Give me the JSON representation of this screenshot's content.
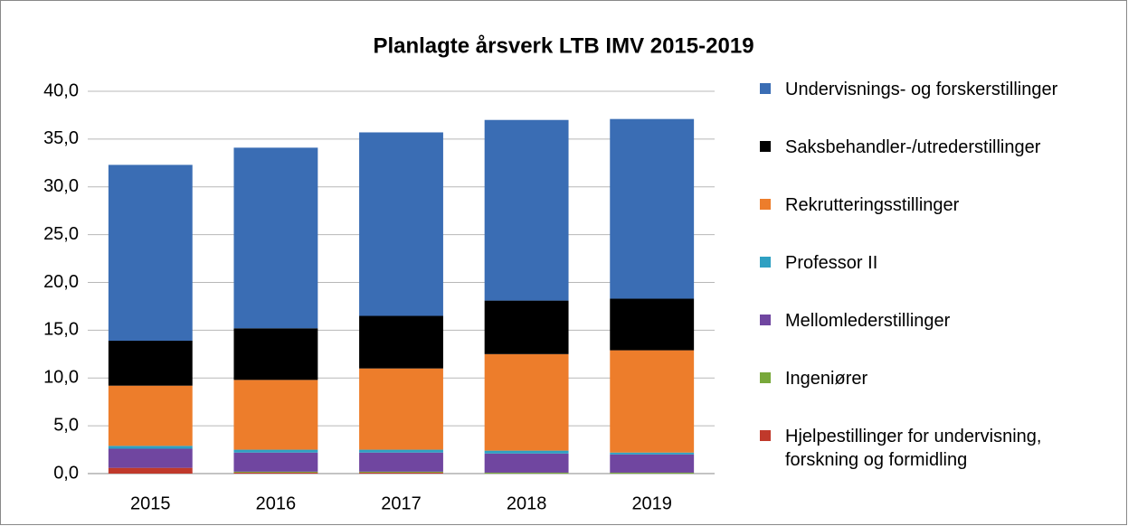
{
  "chart_data": {
    "type": "stacked-bar",
    "title": "Planlagte årsverk LTB IMV 2015-2019",
    "categories": [
      "2015",
      "2016",
      "2017",
      "2018",
      "2019"
    ],
    "series": [
      {
        "name": "Hjelpestillinger for undervisning, forskning og formidling",
        "color": "#c0392b",
        "values": [
          0.6,
          0.1,
          0.1,
          0.0,
          0.0
        ]
      },
      {
        "name": "Ingeniører",
        "color": "#78a83a",
        "values": [
          0.0,
          0.1,
          0.1,
          0.1,
          0.1
        ]
      },
      {
        "name": "Mellomlederstillinger",
        "color": "#7046a0",
        "values": [
          2.0,
          2.0,
          2.0,
          2.0,
          1.9
        ]
      },
      {
        "name": "Professor II",
        "color": "#2fa0c2",
        "values": [
          0.3,
          0.3,
          0.3,
          0.3,
          0.2
        ]
      },
      {
        "name": "Rekrutteringsstillinger",
        "color": "#ed7d2b",
        "values": [
          6.3,
          7.3,
          8.5,
          10.1,
          10.7
        ]
      },
      {
        "name": "Saksbehandler-/utrederstillinger",
        "color": "#000000",
        "values": [
          4.7,
          5.4,
          5.5,
          5.6,
          5.4
        ]
      },
      {
        "name": "Undervisnings- og forskerstillinger",
        "color": "#3a6db4",
        "values": [
          18.4,
          18.9,
          19.2,
          18.9,
          18.8
        ]
      }
    ],
    "ylim": [
      0,
      40
    ],
    "yticks": [
      {
        "value": 0,
        "label": "0,0"
      },
      {
        "value": 5,
        "label": "5,0"
      },
      {
        "value": 10,
        "label": "10,0"
      },
      {
        "value": 15,
        "label": "15,0"
      },
      {
        "value": 20,
        "label": "20,0"
      },
      {
        "value": 25,
        "label": "25,0"
      },
      {
        "value": 30,
        "label": "30,0"
      },
      {
        "value": 35,
        "label": "35,0"
      },
      {
        "value": 40,
        "label": "40,0"
      }
    ],
    "grid": true
  }
}
